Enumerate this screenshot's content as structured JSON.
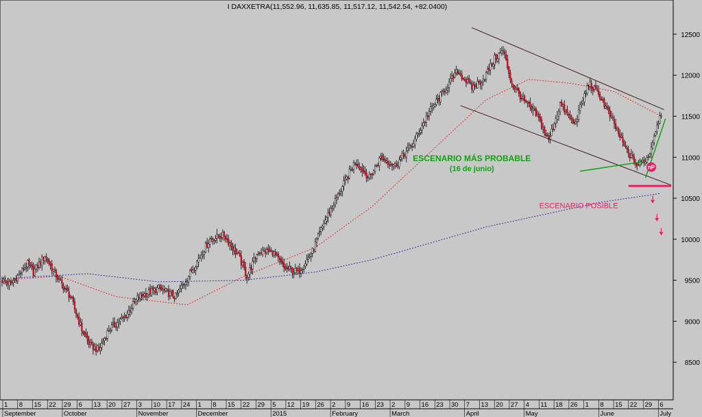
{
  "chart_data": {
    "type": "candlestick",
    "title": "I DAXXETRA(11,552.96, 11,635.85, 11,517.12, 11,542.54, +82.0400)",
    "ylim": [
      8050,
      12750
    ],
    "y_ticks": [
      8500,
      9000,
      9500,
      10000,
      10500,
      11000,
      11500,
      12000,
      12500
    ],
    "grid": false,
    "x_day_ticks": [
      "1",
      "8",
      "15",
      "22",
      "29",
      "6",
      "13",
      "20",
      "27",
      "3",
      "10",
      "17",
      "24",
      "1",
      "8",
      "15",
      "22",
      "29",
      "5",
      "12",
      "19",
      "26",
      "2",
      "9",
      "16",
      "23",
      "2",
      "9",
      "16",
      "23",
      "30",
      "7",
      "13",
      "20",
      "27",
      "4",
      "11",
      "18",
      "26",
      "1",
      "8",
      "15",
      "22",
      "29",
      "6"
    ],
    "x_month_labels": [
      "September",
      "October",
      "November",
      "December",
      "2015",
      "February",
      "March",
      "April",
      "May",
      "June",
      "July"
    ],
    "price_anchors": [
      [
        0,
        9500
      ],
      [
        6,
        9450
      ],
      [
        18,
        9700
      ],
      [
        22,
        9600
      ],
      [
        30,
        9800
      ],
      [
        40,
        9500
      ],
      [
        48,
        9300
      ],
      [
        56,
        8900
      ],
      [
        62,
        8700
      ],
      [
        68,
        8650
      ],
      [
        75,
        8900
      ],
      [
        86,
        9050
      ],
      [
        96,
        9300
      ],
      [
        110,
        9400
      ],
      [
        122,
        9300
      ],
      [
        136,
        9700
      ],
      [
        146,
        10000
      ],
      [
        156,
        10050
      ],
      [
        166,
        9800
      ],
      [
        172,
        9550
      ],
      [
        180,
        9850
      ],
      [
        190,
        9850
      ],
      [
        198,
        9650
      ],
      [
        208,
        9600
      ],
      [
        218,
        9850
      ],
      [
        226,
        10200
      ],
      [
        238,
        10600
      ],
      [
        248,
        10950
      ],
      [
        258,
        10750
      ],
      [
        266,
        11000
      ],
      [
        276,
        10900
      ],
      [
        288,
        11150
      ],
      [
        300,
        11550
      ],
      [
        310,
        11800
      ],
      [
        320,
        12050
      ],
      [
        330,
        11850
      ],
      [
        338,
        11950
      ],
      [
        346,
        12200
      ],
      [
        352,
        12300
      ],
      [
        358,
        11900
      ],
      [
        366,
        11700
      ],
      [
        376,
        11500
      ],
      [
        384,
        11200
      ],
      [
        392,
        11650
      ],
      [
        402,
        11400
      ],
      [
        412,
        11900
      ],
      [
        420,
        11750
      ],
      [
        430,
        11400
      ],
      [
        438,
        11100
      ],
      [
        446,
        10900
      ],
      [
        454,
        11000
      ],
      [
        460,
        11400
      ],
      [
        463,
        11542
      ]
    ],
    "moving_averages": [
      {
        "name": "short",
        "color": "#e03030",
        "points": [
          [
            0,
            9500
          ],
          [
            40,
            9550
          ],
          [
            80,
            9300
          ],
          [
            130,
            9200
          ],
          [
            170,
            9550
          ],
          [
            220,
            9900
          ],
          [
            260,
            10400
          ],
          [
            300,
            11050
          ],
          [
            340,
            11700
          ],
          [
            370,
            11950
          ],
          [
            400,
            11900
          ],
          [
            430,
            11800
          ],
          [
            463,
            11500
          ]
        ]
      },
      {
        "name": "long",
        "color": "#3030a0",
        "points": [
          [
            0,
            9520
          ],
          [
            60,
            9580
          ],
          [
            110,
            9480
          ],
          [
            170,
            9500
          ],
          [
            220,
            9600
          ],
          [
            260,
            9750
          ],
          [
            300,
            9950
          ],
          [
            340,
            10150
          ],
          [
            380,
            10300
          ],
          [
            420,
            10450
          ],
          [
            463,
            10560
          ]
        ]
      }
    ],
    "annotations": [
      {
        "text": "ESCENARIO MÁS PROBABLE",
        "color": "#10a010",
        "x": 330,
        "y": 10950
      },
      {
        "text": "(16 de junio)",
        "color": "#10a010",
        "x": 330,
        "y": 10830
      },
      {
        "text": "ESCENARIO POSIBLE",
        "color": "#e81e64",
        "x": 405,
        "y": 10380
      },
      {
        "text": "nP",
        "color": "#ffffff",
        "bg": "#e81e64",
        "x": 456,
        "y": 10880
      }
    ],
    "channel_lines": [
      {
        "color": "#401818",
        "from": [
          330,
          12580
        ],
        "to": [
          465,
          11580
        ]
      },
      {
        "color": "#401818",
        "from": [
          322,
          11630
        ],
        "to": [
          470,
          10660
        ]
      }
    ],
    "trend_lines": [
      {
        "color": "#10a010",
        "from": [
          406,
          10830
        ],
        "to": [
          452,
          10950
        ]
      },
      {
        "color": "#10a010",
        "from": [
          452,
          10750
        ],
        "to": [
          466,
          11470
        ]
      }
    ],
    "support_line": {
      "color": "#e81e64",
      "y": 10650,
      "x_from": 440,
      "x_to": 470
    },
    "down_arrows": [
      [
        457,
        10470
      ],
      [
        460,
        10250
      ],
      [
        463,
        10080
      ]
    ]
  }
}
